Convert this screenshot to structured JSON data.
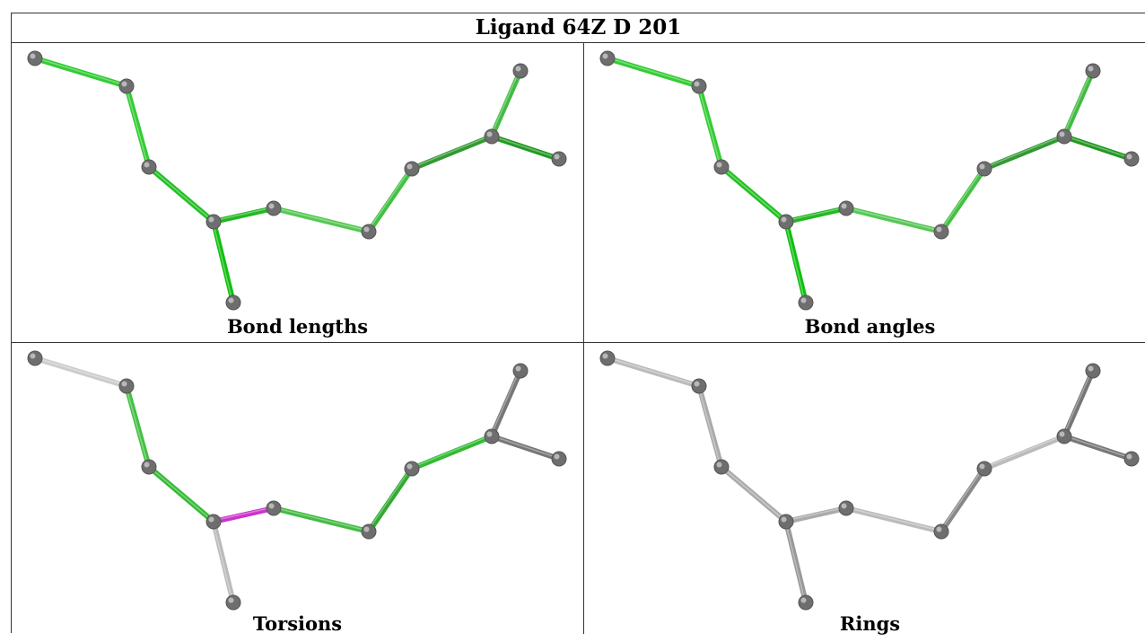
{
  "title": "Ligand 64Z D 201",
  "panels": [
    {
      "caption": "Bond lengths",
      "bond_colors": [
        "#33cc33",
        "#33cc33",
        "#22c022",
        "#22b822",
        "#11c011",
        "#55c855",
        "#44c044",
        "#339933",
        "#44bb44",
        "#229922",
        "#33aa33"
      ]
    },
    {
      "caption": "Bond angles",
      "bond_colors": [
        "#33cc33",
        "#33cc33",
        "#22c022",
        "#22b822",
        "#11c011",
        "#55c855",
        "#44c044",
        "#339933",
        "#44bb44",
        "#229922",
        "#33aa33"
      ]
    },
    {
      "caption": "Torsions",
      "bond_colors": [
        "#cccccc",
        "#44c044",
        "#33bb33",
        "#cc33cc",
        "#bbbbbb",
        "#44bb44",
        "#33aa33",
        "#33bb33",
        "#777777",
        "#777777",
        "#777777"
      ]
    },
    {
      "caption": "Rings",
      "bond_colors": [
        "#bbbbbb",
        "#aaaaaa",
        "#aaaaaa",
        "#aaaaaa",
        "#999999",
        "#bbbbbb",
        "#888888",
        "#bbbbbb",
        "#777777",
        "#777777",
        "#777777"
      ]
    }
  ]
}
